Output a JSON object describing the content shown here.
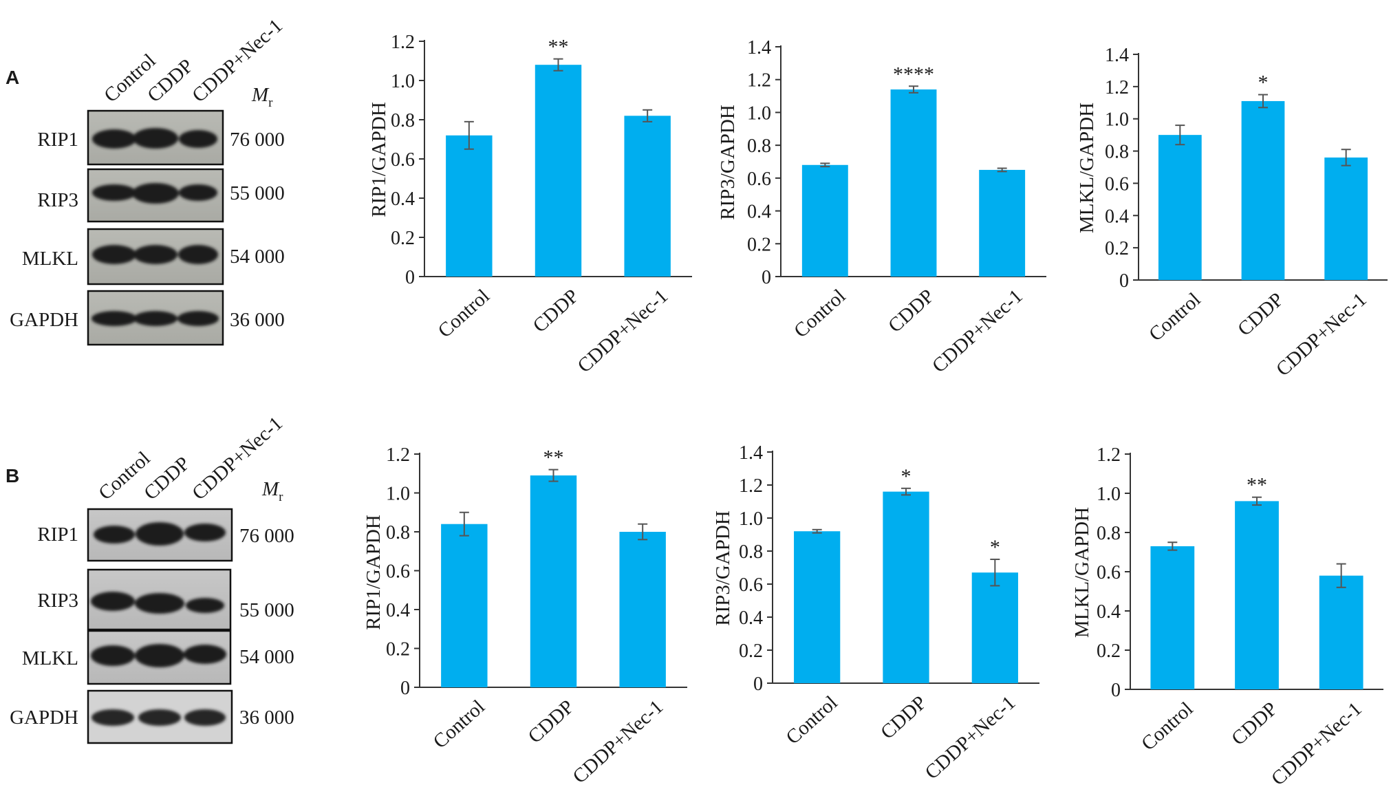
{
  "panels": [
    {
      "letter": "A",
      "blot": {
        "lane_labels": [
          "Control",
          "CDDP",
          "CDDP+Nec-1"
        ],
        "mr_label": "M",
        "mr_sub": "r",
        "rows": [
          {
            "protein": "RIP1",
            "mr": "76 000"
          },
          {
            "protein": "RIP3",
            "mr": "55 000"
          },
          {
            "protein": "MLKL",
            "mr": "54 000"
          },
          {
            "protein": "GAPDH",
            "mr": "36 000"
          }
        ]
      }
    },
    {
      "letter": "B",
      "blot": {
        "lane_labels": [
          "Control",
          "CDDP",
          "CDDP+Nec-1"
        ],
        "mr_label": "M",
        "mr_sub": "r",
        "rows": [
          {
            "protein": "RIP1",
            "mr": "76 000"
          },
          {
            "protein": "RIP3",
            "mr": "55 000"
          },
          {
            "protein": "MLKL",
            "mr": "54 000"
          },
          {
            "protein": "GAPDH",
            "mr": "36 000"
          }
        ]
      }
    }
  ],
  "style": {
    "bar_color": "#00aeef",
    "axis_color": "#333333",
    "error_color": "#555555"
  },
  "chart_data": [
    {
      "type": "bar",
      "panel": "A",
      "categories": [
        "Control",
        "CDDP",
        "CDDP+Nec-1"
      ],
      "values": [
        0.72,
        1.08,
        0.82
      ],
      "errors": [
        0.07,
        0.03,
        0.03
      ],
      "significance": [
        "",
        "**",
        ""
      ],
      "ylabel": "RIP1/GAPDH",
      "ylim": [
        0,
        1.2
      ],
      "yticks": [
        0,
        0.2,
        0.4,
        0.6,
        0.8,
        1.0,
        1.2
      ],
      "ytick_labels": [
        "0",
        "0.2",
        "0.4",
        "0.6",
        "0.8",
        "1.0",
        "1.2"
      ]
    },
    {
      "type": "bar",
      "panel": "A",
      "categories": [
        "Control",
        "CDDP",
        "CDDP+Nec-1"
      ],
      "values": [
        0.68,
        1.14,
        0.65
      ],
      "errors": [
        0.01,
        0.02,
        0.01
      ],
      "significance": [
        "",
        "****",
        ""
      ],
      "ylabel": "RIP3/GAPDH",
      "ylim": [
        0,
        1.4
      ],
      "yticks": [
        0,
        0.2,
        0.4,
        0.6,
        0.8,
        1.0,
        1.2,
        1.4
      ],
      "ytick_labels": [
        "0",
        "0.2",
        "0.4",
        "0.6",
        "0.8",
        "1.0",
        "1.2",
        "1.4"
      ]
    },
    {
      "type": "bar",
      "panel": "A",
      "categories": [
        "Control",
        "CDDP",
        "CDDP+Nec-1"
      ],
      "values": [
        0.9,
        1.11,
        0.76
      ],
      "errors": [
        0.06,
        0.04,
        0.05
      ],
      "significance": [
        "",
        "*",
        ""
      ],
      "ylabel": "MLKL/GAPDH",
      "ylim": [
        0,
        1.4
      ],
      "yticks": [
        0,
        0.2,
        0.4,
        0.6,
        0.8,
        1.0,
        1.2,
        1.4
      ],
      "ytick_labels": [
        "0",
        "0.2",
        "0.4",
        "0.6",
        "0.8",
        "1.0",
        "1.2",
        "1.4"
      ]
    },
    {
      "type": "bar",
      "panel": "B",
      "categories": [
        "Control",
        "CDDP",
        "CDDP+Nec-1"
      ],
      "values": [
        0.84,
        1.09,
        0.8
      ],
      "errors": [
        0.06,
        0.03,
        0.04
      ],
      "significance": [
        "",
        "**",
        ""
      ],
      "ylabel": "RIP1/GAPDH",
      "ylim": [
        0,
        1.2
      ],
      "yticks": [
        0,
        0.2,
        0.4,
        0.6,
        0.8,
        1.0,
        1.2
      ],
      "ytick_labels": [
        "0",
        "0.2",
        "0.4",
        "0.6",
        "0.8",
        "1.0",
        "1.2"
      ]
    },
    {
      "type": "bar",
      "panel": "B",
      "categories": [
        "Control",
        "CDDP",
        "CDDP+Nec-1"
      ],
      "values": [
        0.92,
        1.16,
        0.67
      ],
      "errors": [
        0.01,
        0.02,
        0.08
      ],
      "significance": [
        "",
        "*",
        "*"
      ],
      "ylabel": "RIP3/GAPDH",
      "ylim": [
        0,
        1.4
      ],
      "yticks": [
        0,
        0.2,
        0.4,
        0.6,
        0.8,
        1.0,
        1.2,
        1.4
      ],
      "ytick_labels": [
        "0",
        "0.2",
        "0.4",
        "0.6",
        "0.8",
        "1.0",
        "1.2",
        "1.4"
      ]
    },
    {
      "type": "bar",
      "panel": "B",
      "categories": [
        "Control",
        "CDDP",
        "CDDP+Nec-1"
      ],
      "values": [
        0.73,
        0.96,
        0.58
      ],
      "errors": [
        0.02,
        0.02,
        0.06
      ],
      "significance": [
        "",
        "**",
        ""
      ],
      "ylabel": "MLKL/GAPDH",
      "ylim": [
        0,
        1.2
      ],
      "yticks": [
        0,
        0.2,
        0.4,
        0.6,
        0.8,
        1.0,
        1.2
      ],
      "ytick_labels": [
        "0",
        "0.2",
        "0.4",
        "0.6",
        "0.8",
        "1.0",
        "1.2"
      ]
    }
  ]
}
